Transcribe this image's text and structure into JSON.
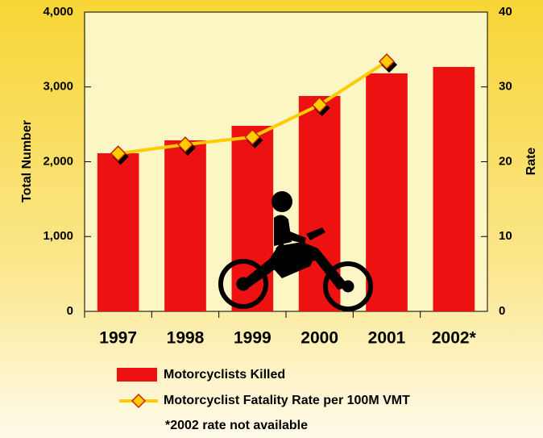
{
  "chart_data": {
    "type": "bar",
    "categories": [
      "1997",
      "1998",
      "1999",
      "2000",
      "2001",
      "2002*"
    ],
    "series": [
      {
        "name": "Motorcyclists Killed",
        "color": "#ee1111",
        "values": [
          2113,
          2286,
          2480,
          2879,
          3181,
          3267
        ]
      },
      {
        "name": "Motorcyclist Fatality Rate per 100M  VMT",
        "color": "#ffcc00",
        "type": "line",
        "axis": "y2",
        "values": [
          21.1,
          22.3,
          23.3,
          27.6,
          33.4,
          null
        ]
      }
    ],
    "ylabel": "Total Number",
    "y2label": "Rate",
    "ylim": [
      0,
      4000
    ],
    "yticks": [
      0,
      {
        "value": 1000,
        "label": "1,000"
      },
      {
        "value": 2000,
        "label": "2,000"
      },
      {
        "value": 3000,
        "label": "3,000"
      },
      {
        "value": 4000,
        "label": "4,000"
      }
    ],
    "y2lim": [
      0,
      40
    ],
    "y2ticks": [
      0,
      10,
      20,
      30,
      40
    ],
    "footnote": "*2002 rate not available"
  }
}
